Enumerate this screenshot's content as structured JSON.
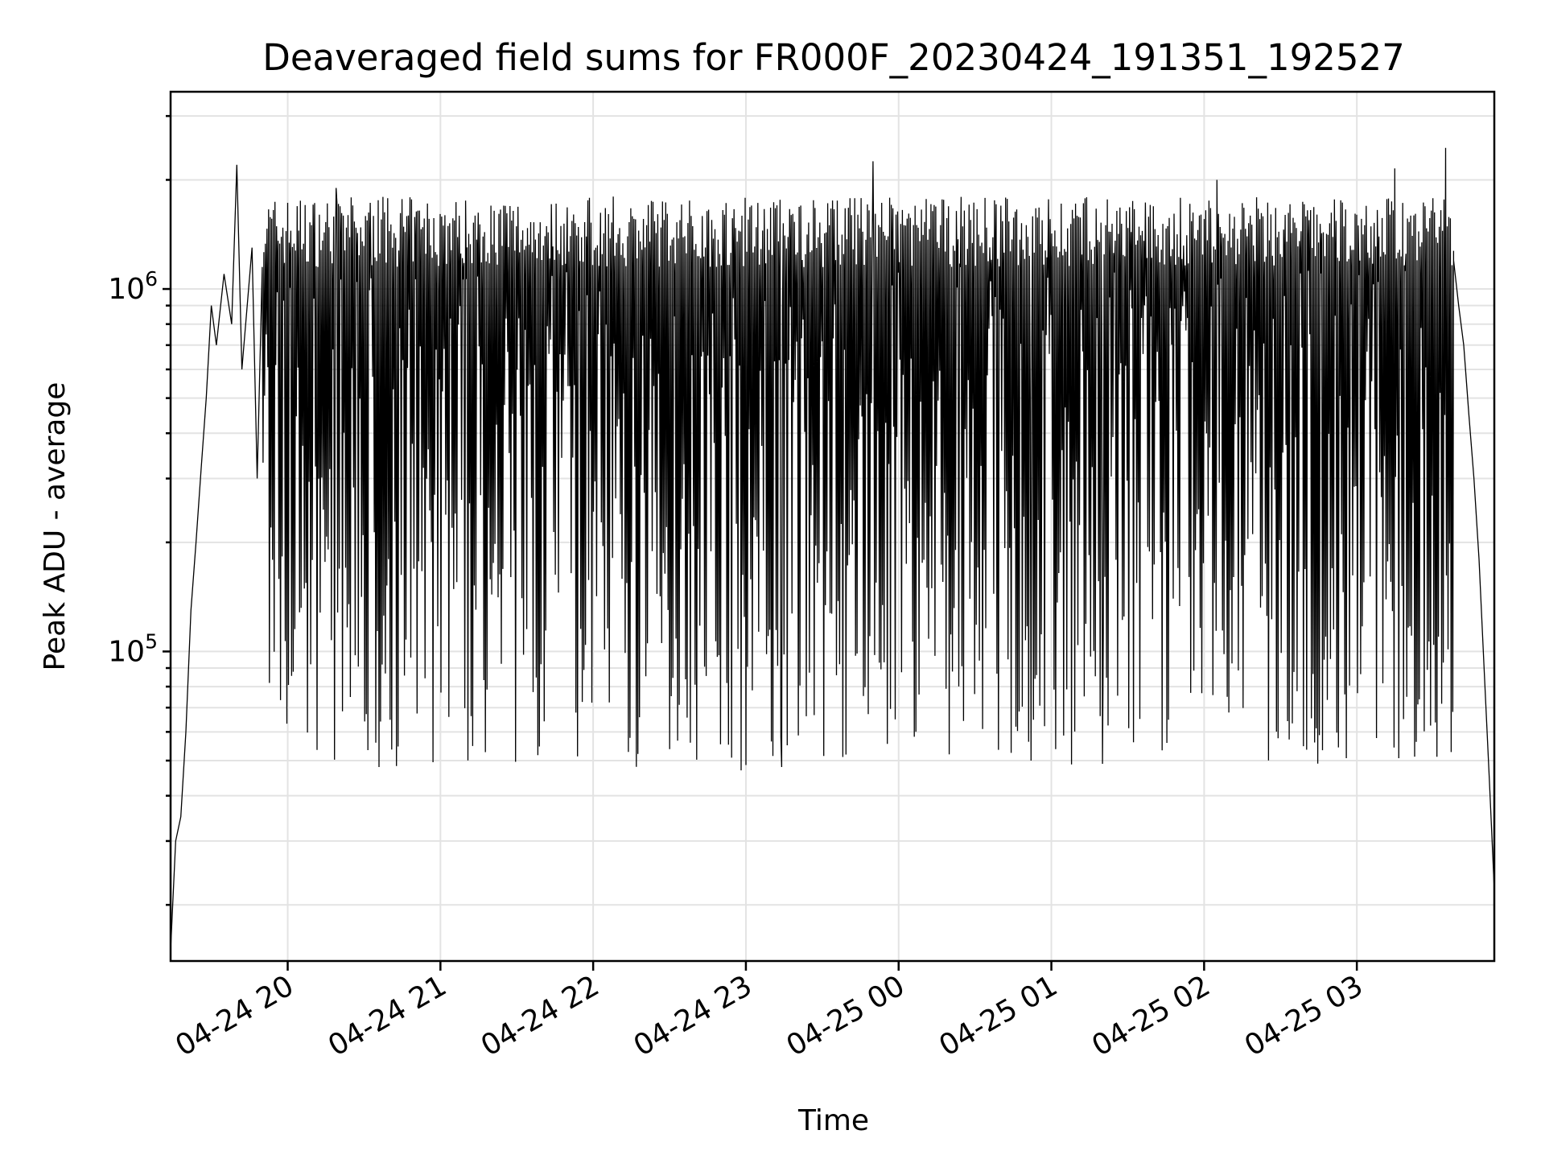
{
  "chart_data": {
    "type": "line",
    "title": "Deaveraged field sums for FR000F_20230424_191351_192527",
    "xlabel": "Time",
    "ylabel": "Peak ADU - average",
    "yscale": "log",
    "ylim": [
      14000,
      3500000
    ],
    "xlim": [
      "2023-04-24 19:14",
      "2023-04-25 03:54"
    ],
    "grid": true,
    "x_ticks": [
      {
        "time": "2023-04-24 20:00",
        "label": "04-24 20"
      },
      {
        "time": "2023-04-24 21:00",
        "label": "04-24 21"
      },
      {
        "time": "2023-04-24 22:00",
        "label": "04-24 22"
      },
      {
        "time": "2023-04-24 23:00",
        "label": "04-24 23"
      },
      {
        "time": "2023-04-25 00:00",
        "label": "04-25 00"
      },
      {
        "time": "2023-04-25 01:00",
        "label": "04-25 01"
      },
      {
        "time": "2023-04-25 02:00",
        "label": "04-25 02"
      },
      {
        "time": "2023-04-25 03:00",
        "label": "04-25 03"
      }
    ],
    "y_ticks": [
      {
        "value": 100000,
        "base": "10",
        "exp": "5"
      },
      {
        "value": 1000000,
        "base": "10",
        "exp": "6"
      }
    ],
    "series": [
      {
        "color": "#000000",
        "points": [
          [
            "2023-04-24 19:14",
            15000
          ],
          [
            "2023-04-24 19:16",
            30000
          ],
          [
            "2023-04-24 19:18",
            35000
          ],
          [
            "2023-04-24 19:20",
            60000
          ],
          [
            "2023-04-24 19:22",
            130000
          ],
          [
            "2023-04-24 19:24",
            200000
          ],
          [
            "2023-04-24 19:26",
            320000
          ],
          [
            "2023-04-24 19:28",
            500000
          ],
          [
            "2023-04-24 19:30",
            900000
          ],
          [
            "2023-04-24 19:32",
            700000
          ],
          [
            "2023-04-24 19:35",
            1100000
          ],
          [
            "2023-04-24 19:38",
            800000
          ],
          [
            "2023-04-24 19:40",
            2200000
          ],
          [
            "2023-04-24 19:42",
            600000
          ],
          [
            "2023-04-24 19:46",
            1300000
          ],
          [
            "2023-04-24 19:48",
            300000
          ]
        ]
      }
    ],
    "band": {
      "start": "2023-04-24 19:50",
      "end": "2023-04-25 03:38",
      "upper": [
        1150000,
        1800000
      ],
      "lower": [
        48000,
        260000
      ],
      "spikes": [
        [
          "2023-04-24 23:50",
          2250000
        ],
        [
          "2023-04-25 03:35",
          2450000
        ],
        [
          "2023-04-25 03:15",
          2150000
        ],
        [
          "2023-04-25 02:05",
          2000000
        ],
        [
          "2023-04-24 20:19",
          1900000
        ],
        [
          "2023-04-24 20:36",
          48000
        ],
        [
          "2023-04-24 22:58",
          47000
        ],
        [
          "2023-04-24 23:14",
          48000
        ],
        [
          "2023-04-25 00:52",
          50000
        ],
        [
          "2023-04-25 01:20",
          49000
        ]
      ]
    },
    "tail": [
      [
        "2023-04-25 03:38",
        1200000
      ],
      [
        "2023-04-25 03:40",
        900000
      ],
      [
        "2023-04-25 03:42",
        700000
      ],
      [
        "2023-04-25 03:44",
        450000
      ],
      [
        "2023-04-25 03:46",
        300000
      ],
      [
        "2023-04-25 03:48",
        180000
      ],
      [
        "2023-04-25 03:50",
        90000
      ],
      [
        "2023-04-25 03:52",
        45000
      ],
      [
        "2023-04-25 03:54",
        22000
      ]
    ]
  }
}
